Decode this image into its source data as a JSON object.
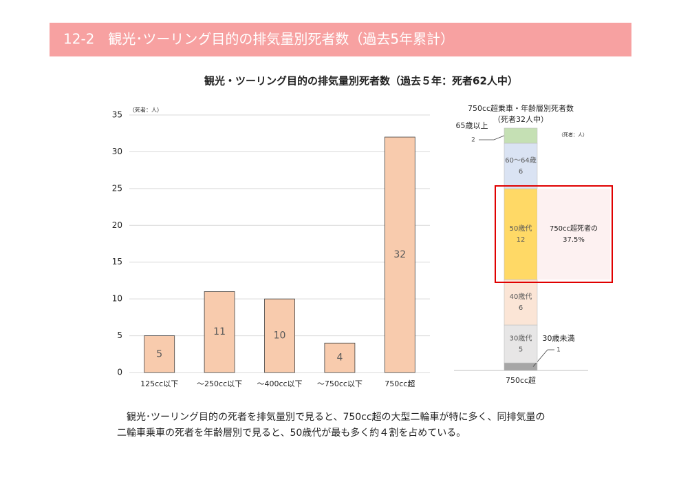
{
  "header": {
    "title": "12-2　観光･ツーリング目的の排気量別死者数（過去5年累計）"
  },
  "chart_data": [
    {
      "type": "bar",
      "title": "観光・ツーリング目的の排気量別死者数（過去５年：死者62人中）",
      "unit_label": "（死者：人）",
      "categories": [
        "125cc以下",
        "～250cc以下",
        "～400cc以下",
        "～750cc以下",
        "750cc超"
      ],
      "values": [
        5,
        11,
        10,
        4,
        32
      ],
      "color": "#f8cbad",
      "ylim": [
        0,
        35
      ],
      "yticks": [
        0,
        5,
        10,
        15,
        20,
        25,
        30,
        35
      ],
      "grid": true
    },
    {
      "type": "stacked_bar",
      "title": "750cc超乗車・年齢層別死者数",
      "subtitle": "（死者32人中）",
      "unit_label": "（死者：人）",
      "categories": [
        "750cc超"
      ],
      "series": [
        {
          "name": "30歳未満",
          "color": "#a6a6a6",
          "values": [
            1
          ]
        },
        {
          "name": "30歳代",
          "color": "#e7e6e6",
          "values": [
            5
          ]
        },
        {
          "name": "40歳代",
          "color": "#fbe5d6",
          "values": [
            6
          ]
        },
        {
          "name": "50歳代",
          "color": "#ffd966",
          "values": [
            12
          ]
        },
        {
          "name": "60～64歳",
          "color": "#dae3f3",
          "values": [
            6
          ]
        },
        {
          "name": "65歳以上",
          "color": "#c5e0b4",
          "values": [
            2
          ]
        }
      ],
      "annotation": [
        "750cc超死者の",
        "37.5%"
      ]
    }
  ],
  "body": {
    "lines": [
      "　観光･ツーリング目的の死者を排気量別で見ると、750cc超の大型二輪車が特に多く、同排気量の",
      "二輪車乗車の死者を年齢層別で見ると、50歳代が最も多く約４割を占めている。"
    ]
  }
}
